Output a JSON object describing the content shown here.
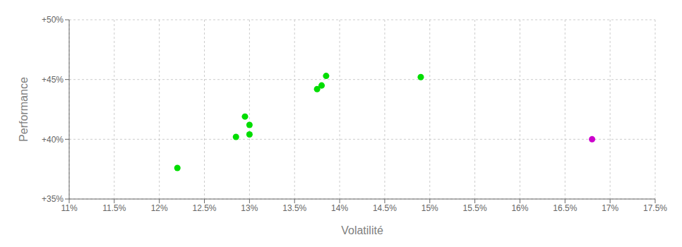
{
  "chart_data": {
    "type": "scatter",
    "xlabel": "Volatilité",
    "ylabel": "Performance",
    "xlim": [
      0.11,
      0.175
    ],
    "ylim": [
      0.35,
      0.5
    ],
    "xticks": [
      {
        "value": 0.11,
        "label": "11%"
      },
      {
        "value": 0.115,
        "label": "11.5%"
      },
      {
        "value": 0.12,
        "label": "12%"
      },
      {
        "value": 0.125,
        "label": "12.5%"
      },
      {
        "value": 0.13,
        "label": "13%"
      },
      {
        "value": 0.135,
        "label": "13.5%"
      },
      {
        "value": 0.14,
        "label": "14%"
      },
      {
        "value": 0.145,
        "label": "14.5%"
      },
      {
        "value": 0.15,
        "label": "15%"
      },
      {
        "value": 0.155,
        "label": "15.5%"
      },
      {
        "value": 0.16,
        "label": "16%"
      },
      {
        "value": 0.165,
        "label": "16.5%"
      },
      {
        "value": 0.17,
        "label": "17%"
      },
      {
        "value": 0.175,
        "label": "17.5%"
      }
    ],
    "yticks": [
      {
        "value": 0.35,
        "label": "+35%"
      },
      {
        "value": 0.4,
        "label": "+40%"
      },
      {
        "value": 0.45,
        "label": "+45%"
      },
      {
        "value": 0.5,
        "label": "+50%"
      }
    ],
    "grid": true,
    "series": [
      {
        "color": "#00dd00",
        "x": [
          0.122,
          0.1285,
          0.13,
          0.13,
          0.1295,
          0.1375,
          0.138,
          0.1385,
          0.149
        ],
        "values": [
          0.376,
          0.402,
          0.404,
          0.412,
          0.419,
          0.442,
          0.445,
          0.453,
          0.452
        ]
      },
      {
        "color": "#cc00cc",
        "x": [
          0.168
        ],
        "values": [
          0.4
        ]
      }
    ]
  }
}
